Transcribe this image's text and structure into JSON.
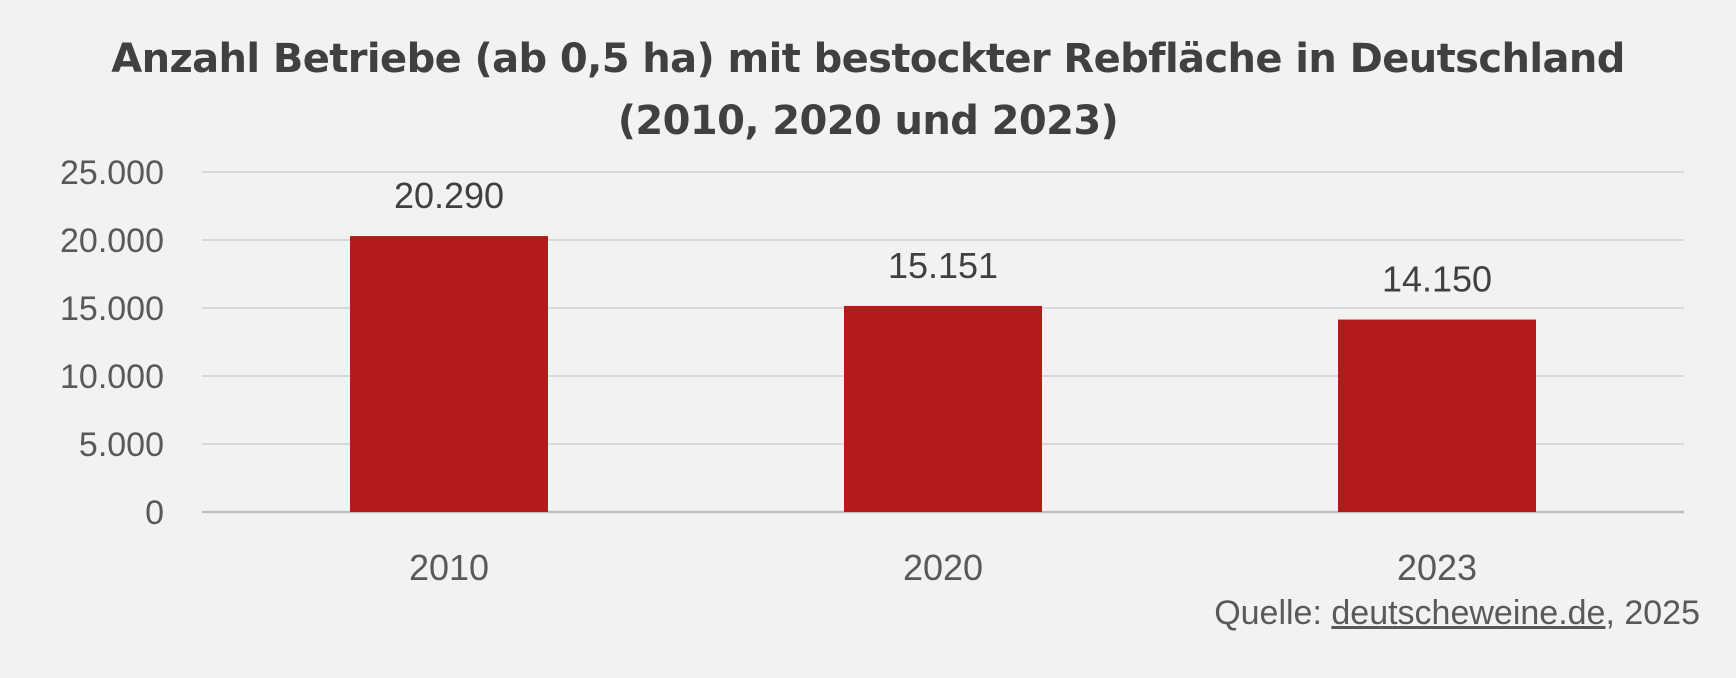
{
  "chart_data": {
    "type": "bar",
    "title_lines": [
      "Anzahl Betriebe (ab 0,5 ha) mit bestockter Rebfläche in Deutschland",
      "(2010, 2020 und 2023)"
    ],
    "categories": [
      "2010",
      "2020",
      "2023"
    ],
    "values": [
      20290,
      15151,
      14150
    ],
    "value_labels": [
      "20.290",
      "15.151",
      "14.150"
    ],
    "ylim": [
      0,
      25000
    ],
    "yticks": [
      0,
      5000,
      10000,
      15000,
      20000,
      25000
    ],
    "ytick_labels": [
      "0",
      "5.000",
      "10.000",
      "15.000",
      "20.000",
      "25.000"
    ],
    "grid": true,
    "legend": "none",
    "bar_color": "#b51a1a",
    "gridline_color": "#d9d9d9"
  },
  "source": {
    "prefix": "Quelle: ",
    "link_text": "deutscheweine.de",
    "suffix": ", 2025"
  }
}
